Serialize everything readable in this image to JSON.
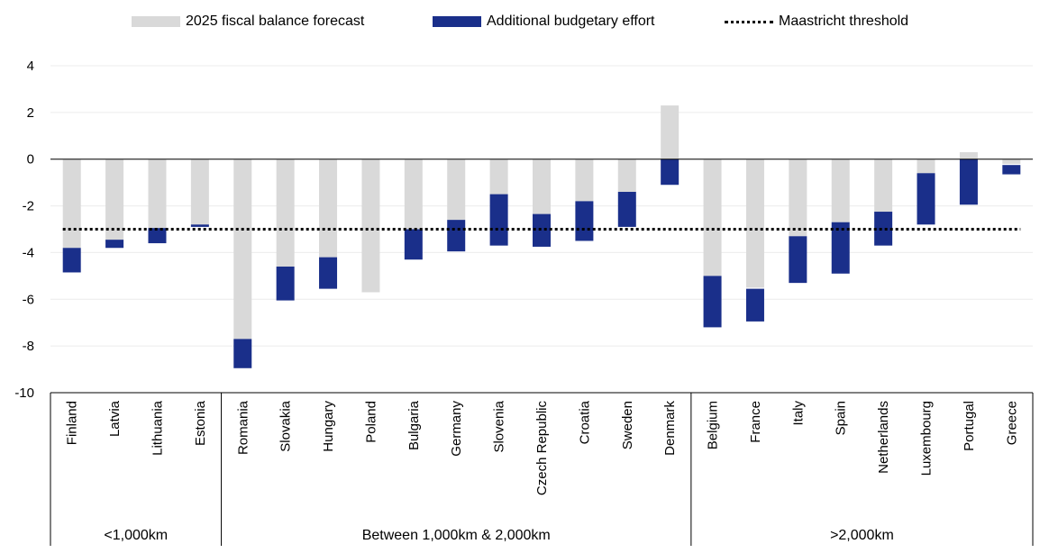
{
  "chart_data": {
    "type": "bar",
    "stacked": true,
    "categories": [
      "Finland",
      "Latvia",
      "Lithuania",
      "Estonia",
      "Romania",
      "Slovakia",
      "Hungary",
      "Poland",
      "Bulgaria",
      "Germany",
      "Slovenia",
      "Czech Republic",
      "Croatia",
      "Sweden",
      "Denmark",
      "Belgium",
      "France",
      "Italy",
      "Spain",
      "Netherlands",
      "Luxembourg",
      "Portugal",
      "Greece"
    ],
    "groups": [
      {
        "label": "<1,000km",
        "count": 4
      },
      {
        "label": "Between 1,000km & 2,000km",
        "count": 11
      },
      {
        "label": ">2,000km",
        "count": 8
      }
    ],
    "series": [
      {
        "name": "2025 fiscal balance forecast",
        "color": "#d9d9d9",
        "values": [
          -3.8,
          -3.5,
          -3.0,
          -2.8,
          -7.7,
          -4.6,
          -4.2,
          -5.7,
          -3.0,
          -2.6,
          -1.5,
          -2.4,
          -1.8,
          -1.4,
          2.3,
          -5.0,
          -5.5,
          -3.3,
          -2.7,
          -2.3,
          -0.6,
          0.3,
          -0.2
        ]
      },
      {
        "name": "Additional budgetary effort",
        "color": "#1a2f8a",
        "ranges": [
          [
            -3.8,
            -4.85
          ],
          [
            -3.45,
            -3.8
          ],
          [
            -2.95,
            -3.6
          ],
          [
            -2.8,
            -2.9
          ],
          [
            -7.7,
            -8.95
          ],
          [
            -4.6,
            -6.05
          ],
          [
            -4.2,
            -5.55
          ],
          null,
          [
            -3.0,
            -4.3
          ],
          [
            -2.6,
            -3.95
          ],
          [
            -1.5,
            -3.7
          ],
          [
            -2.35,
            -3.75
          ],
          [
            -1.8,
            -3.5
          ],
          [
            -1.4,
            -2.9
          ],
          [
            0,
            -1.1
          ],
          [
            -5.0,
            -7.2
          ],
          [
            -5.55,
            -6.95
          ],
          [
            -3.3,
            -5.3
          ],
          [
            -2.7,
            -4.9
          ],
          [
            -2.25,
            -3.7
          ],
          [
            -0.6,
            -2.8
          ],
          [
            0,
            -1.95
          ],
          [
            -0.25,
            -0.65
          ]
        ]
      },
      {
        "name": "Maastricht threshold",
        "style": "dotted",
        "value": -3
      }
    ],
    "yticks": [
      4,
      2,
      0,
      -2,
      -4,
      -6,
      -8,
      -10
    ],
    "ylim": [
      -10,
      4
    ],
    "grid": true,
    "legend": "top"
  }
}
